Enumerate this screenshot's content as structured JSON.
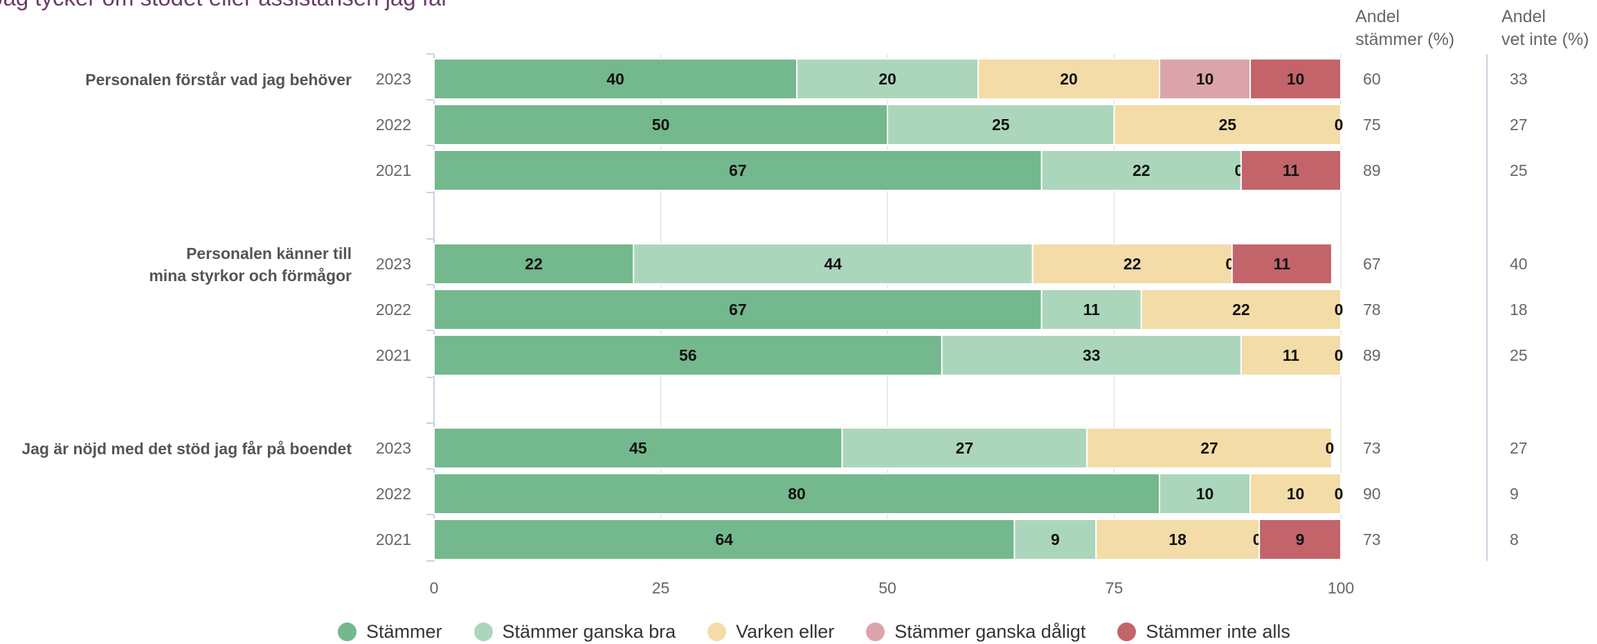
{
  "chart_data": {
    "type": "bar",
    "orientation": "horizontal",
    "stacked": true,
    "title": "Jag tycker om stödet eller assistansen jag får",
    "xlim": [
      0,
      100
    ],
    "xticks": [
      "0",
      "25",
      "50",
      "75",
      "100"
    ],
    "grid": true,
    "legend_position": "bottom",
    "series": [
      {
        "name": "Stämmer",
        "color": "#74b88e"
      },
      {
        "name": "Stämmer ganska bra",
        "color": "#acd6bc"
      },
      {
        "name": "Varken eller",
        "color": "#f3dca8"
      },
      {
        "name": "Stämmer ganska dåligt",
        "color": "#dba4aa"
      },
      {
        "name": "Stämmer inte alls",
        "color": "#c3646b"
      }
    ],
    "columns": {
      "andel_stammer": [
        "Andel",
        "stämmer (%)"
      ],
      "andel_vet_inte": [
        "Andel",
        "vet inte (%)"
      ]
    },
    "groups": [
      {
        "label": [
          "Personalen förstår vad jag behöver"
        ],
        "rows": [
          {
            "year": "2023",
            "values": [
              40,
              20,
              20,
              10,
              10
            ],
            "labels": [
              "40",
              "20",
              "20",
              "10",
              "10"
            ],
            "andel_stammer": "60",
            "andel_vet_inte": "33"
          },
          {
            "year": "2022",
            "values": [
              50,
              25,
              25,
              0,
              0
            ],
            "labels": [
              "50",
              "25",
              "25",
              "0",
              ""
            ],
            "andel_stammer": "75",
            "andel_vet_inte": "27"
          },
          {
            "year": "2021",
            "values": [
              67,
              22,
              0,
              0,
              11
            ],
            "labels": [
              "67",
              "22",
              "0",
              "",
              "11"
            ],
            "andel_stammer": "89",
            "andel_vet_inte": "25"
          }
        ]
      },
      {
        "label": [
          "Personalen känner till",
          "mina styrkor och förmågor"
        ],
        "rows": [
          {
            "year": "2023",
            "values": [
              22,
              44,
              22,
              0,
              11
            ],
            "labels": [
              "22",
              "44",
              "22",
              "0",
              "11"
            ],
            "andel_stammer": "67",
            "andel_vet_inte": "40"
          },
          {
            "year": "2022",
            "values": [
              67,
              11,
              22,
              0,
              0
            ],
            "labels": [
              "67",
              "11",
              "22",
              "0",
              ""
            ],
            "andel_stammer": "78",
            "andel_vet_inte": "18"
          },
          {
            "year": "2021",
            "values": [
              56,
              33,
              11,
              0,
              0
            ],
            "labels": [
              "56",
              "33",
              "11",
              "0",
              ""
            ],
            "andel_stammer": "89",
            "andel_vet_inte": "25"
          }
        ]
      },
      {
        "label": [
          "Jag är nöjd med det stöd jag får på boendet"
        ],
        "rows": [
          {
            "year": "2023",
            "values": [
              45,
              27,
              27,
              0,
              0
            ],
            "labels": [
              "45",
              "27",
              "27",
              "0",
              ""
            ],
            "andel_stammer": "73",
            "andel_vet_inte": "27"
          },
          {
            "year": "2022",
            "values": [
              80,
              10,
              10,
              0,
              0
            ],
            "labels": [
              "80",
              "10",
              "10",
              "0",
              ""
            ],
            "andel_stammer": "90",
            "andel_vet_inte": "9"
          },
          {
            "year": "2021",
            "values": [
              64,
              9,
              18,
              0,
              9
            ],
            "labels": [
              "64",
              "9",
              "18",
              "0",
              "9"
            ],
            "andel_stammer": "73",
            "andel_vet_inte": "8"
          }
        ]
      }
    ]
  }
}
